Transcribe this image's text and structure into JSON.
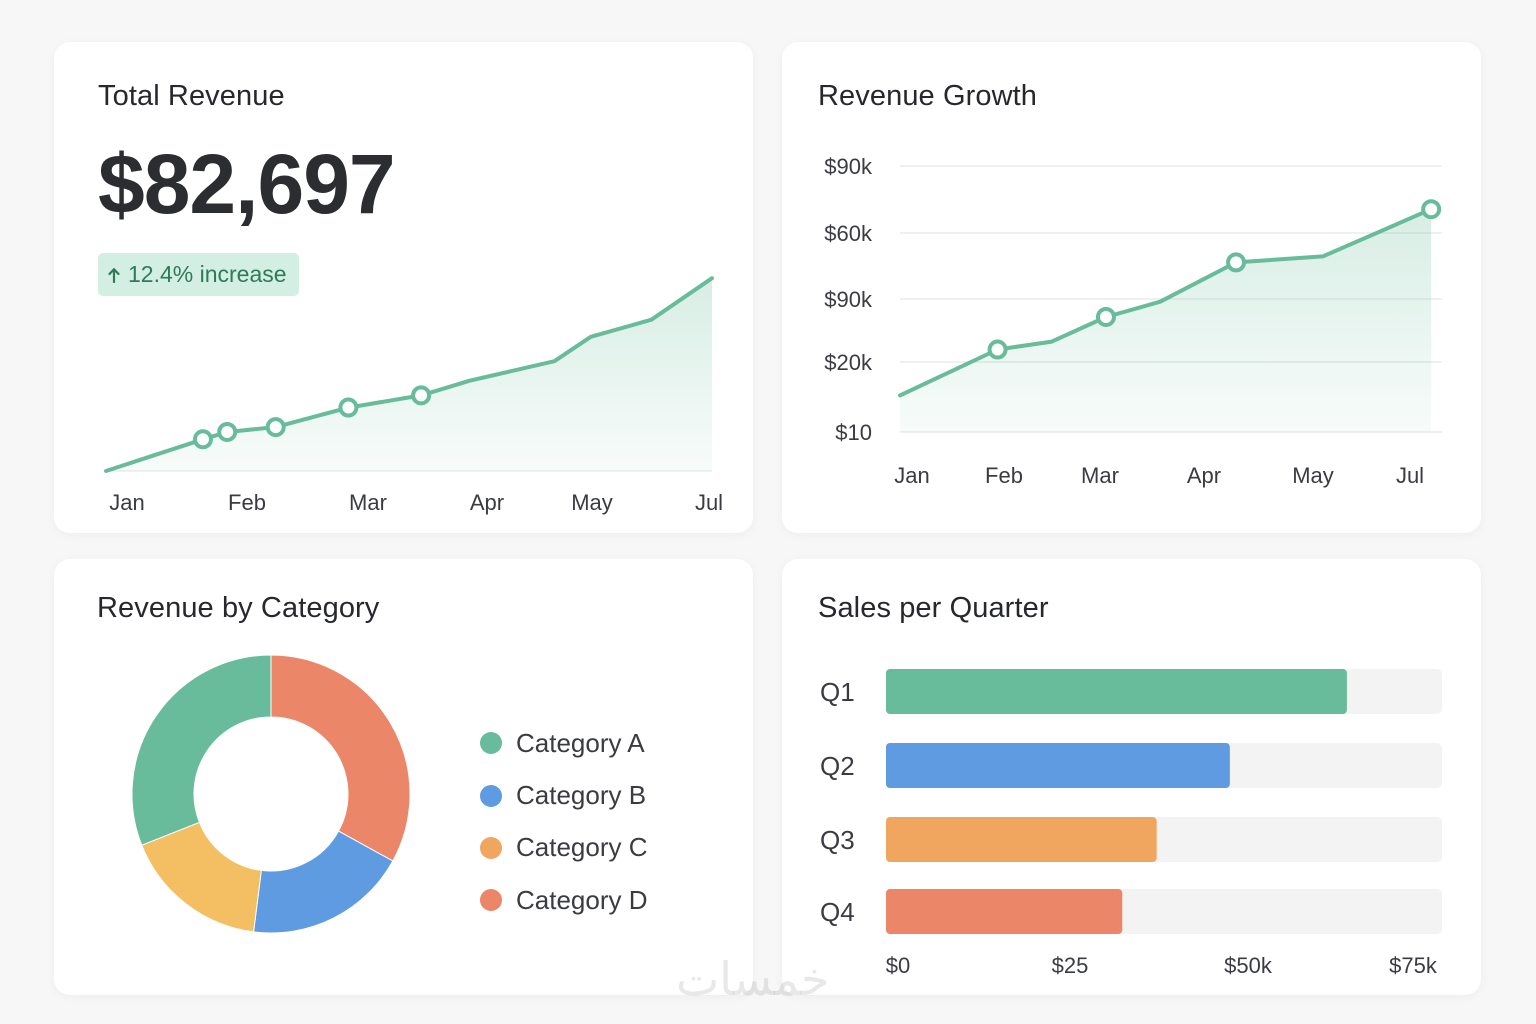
{
  "colors": {
    "green": "#68bb9b",
    "blue": "#5f9be0",
    "orange": "#f0a65e",
    "yellow": "#f3bf62",
    "red": "#ec8668",
    "track": "#f3f3f4",
    "grid": "#e9ebee",
    "axis_text": "#3a3c41"
  },
  "total_revenue": {
    "title": "Total Revenue",
    "value": "$82,697",
    "badge_icon": "arrow-up-icon",
    "badge_text": "12.4% increase"
  },
  "revenue_growth": {
    "title": "Revenue Growth"
  },
  "revenue_by_category": {
    "title": "Revenue by Category",
    "legend": [
      "Category A",
      "Category B",
      "Category C",
      "Category D"
    ]
  },
  "sales_per_quarter": {
    "title": "Sales per Quarter"
  },
  "watermark": "خمسات",
  "chart_data": [
    {
      "id": "total_revenue_trend",
      "type": "area",
      "title": "Total Revenue",
      "xlabel": "",
      "ylabel": "",
      "grid": false,
      "x_labels": [
        "Jan",
        "Feb",
        "Mar",
        "Apr",
        "May",
        "Jul"
      ],
      "x": [
        0,
        0.8,
        1,
        1.4,
        2,
        2.6,
        3,
        3.7,
        4,
        4.5,
        5
      ],
      "values": [
        0,
        13,
        16,
        18,
        26,
        31,
        37,
        45,
        55,
        62,
        79
      ],
      "markers": [
        1,
        2,
        3,
        4,
        5
      ],
      "xlim": [
        0,
        5
      ],
      "ylim": [
        0,
        100
      ]
    },
    {
      "id": "revenue_growth",
      "type": "area",
      "title": "Revenue Growth",
      "xlabel": "",
      "ylabel": "",
      "grid": true,
      "x_labels": [
        "Jan",
        "Feb",
        "Mar",
        "Apr",
        "May",
        "Jul"
      ],
      "y_tick_labels": [
        "$10",
        "$20k",
        "$90k",
        "$60k",
        "$90k"
      ],
      "x": [
        0,
        0.9,
        1.4,
        1.9,
        2.4,
        3.1,
        3.9,
        4.9
      ],
      "values": [
        5.5,
        12.4,
        13.6,
        17.3,
        19.6,
        25.5,
        26.4,
        33.5
      ],
      "markers": [
        1,
        3,
        5,
        7
      ],
      "xlim": [
        0,
        5
      ],
      "ylim": [
        0,
        40
      ]
    },
    {
      "id": "revenue_by_category",
      "type": "pie",
      "title": "Revenue by Category",
      "labels": [
        "Category A",
        "Category B",
        "Category C",
        "Category D"
      ],
      "values": [
        31,
        19,
        17,
        33
      ],
      "donut": true,
      "legend": "right"
    },
    {
      "id": "sales_per_quarter",
      "type": "bar",
      "orientation": "horizontal",
      "title": "Sales per Quarter",
      "categories": [
        "Q1",
        "Q2",
        "Q3",
        "Q4"
      ],
      "values": [
        63,
        47,
        37,
        32.3
      ],
      "xlim": [
        0,
        76
      ],
      "x_ticks": [
        0,
        25,
        50,
        75
      ],
      "x_tick_labels": [
        "$0",
        "$25",
        "$50k",
        "$75k"
      ]
    }
  ]
}
